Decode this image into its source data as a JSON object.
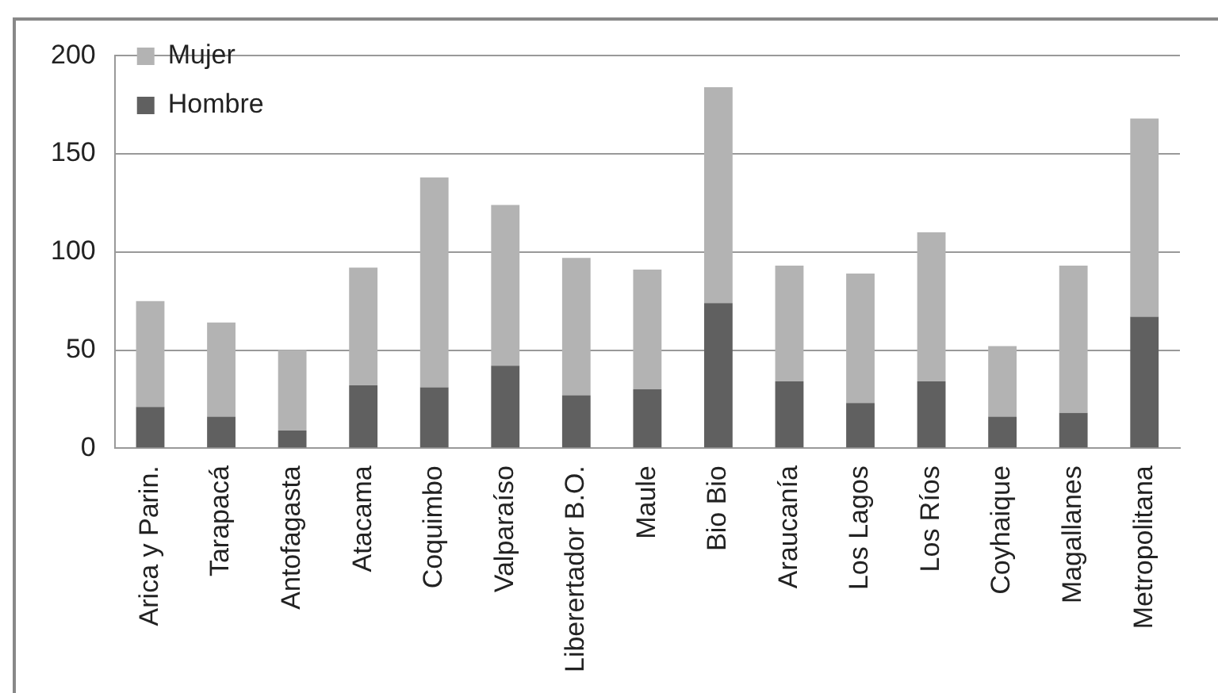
{
  "chart_data": {
    "type": "bar",
    "stacked": true,
    "categories": [
      "Arica y Parin.",
      "Tarapacá",
      "Antofagasta",
      "Atacama",
      "Coquimbo",
      "Valparaíso",
      "Liberertador B.O.",
      "Maule",
      "Bio Bio",
      "Araucanía",
      "Los Lagos",
      "Los Ríos",
      "Coyhaique",
      "Magallanes",
      "Metropolitana"
    ],
    "series": [
      {
        "name": "Hombre",
        "color": "#606060",
        "values": [
          21,
          16,
          9,
          32,
          31,
          42,
          27,
          30,
          74,
          34,
          23,
          34,
          16,
          18,
          67
        ]
      },
      {
        "name": "Mujer",
        "color": "#b3b3b3",
        "values": [
          54,
          48,
          41,
          60,
          107,
          82,
          70,
          61,
          110,
          59,
          66,
          76,
          36,
          75,
          101
        ]
      }
    ],
    "ylim": [
      0,
      200
    ],
    "yticks": [
      0,
      50,
      100,
      150,
      200
    ],
    "grid": "y",
    "legend": "top left"
  }
}
